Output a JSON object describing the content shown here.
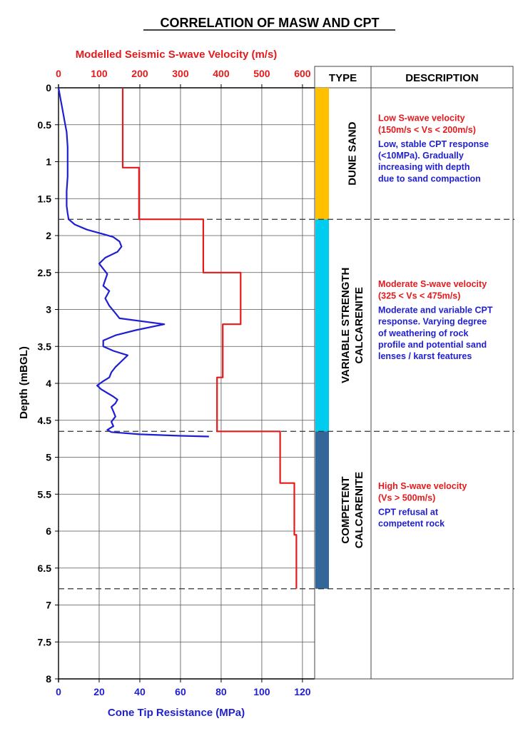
{
  "title": "CORRELATION OF MASW AND CPT",
  "chart_data": {
    "type": "line",
    "top_axis": {
      "label": "Modelled Seismic S-wave Velocity (m/s)",
      "range": [
        0,
        630
      ],
      "ticks": [
        0,
        100,
        200,
        300,
        400,
        500,
        600
      ],
      "color": "#e41a1c"
    },
    "bottom_axis": {
      "label": "Cone Tip Resistance (MPa)",
      "range": [
        0,
        126
      ],
      "ticks": [
        0,
        20,
        40,
        60,
        80,
        100,
        120
      ],
      "color": "#1f1fd2"
    },
    "y_axis": {
      "label": "Depth (mBGL)",
      "range": [
        0,
        8
      ],
      "inverted": true,
      "ticks": [
        "0",
        "0.5",
        "1",
        "1.5",
        "2",
        "2.5",
        "3",
        "3.5",
        "4",
        "4.5",
        "5",
        "5.5",
        "6",
        "6.5",
        "7",
        "7.5",
        "8"
      ],
      "tick_values": [
        0,
        0.5,
        1,
        1.5,
        2,
        2.5,
        3,
        3.5,
        4,
        4.5,
        5,
        5.5,
        6,
        6.5,
        7,
        7.5,
        8
      ]
    },
    "grid": true,
    "series": [
      {
        "axis": "top",
        "color": "#e41a1c",
        "points": [
          [
            158,
            0
          ],
          [
            158,
            1.08
          ],
          [
            198,
            1.08
          ],
          [
            198,
            1.78
          ],
          [
            356,
            1.78
          ],
          [
            356,
            2.5
          ],
          [
            448,
            2.5
          ],
          [
            448,
            3.2
          ],
          [
            404,
            3.2
          ],
          [
            404,
            3.92
          ],
          [
            390,
            3.92
          ],
          [
            390,
            4.65
          ],
          [
            545,
            4.65
          ],
          [
            545,
            5.35
          ],
          [
            580,
            5.35
          ],
          [
            580,
            6.05
          ],
          [
            585,
            6.05
          ],
          [
            585,
            6.78
          ]
        ]
      },
      {
        "axis": "bottom",
        "color": "#1f1fd2",
        "points": [
          [
            0,
            0
          ],
          [
            1,
            0.15
          ],
          [
            2,
            0.3
          ],
          [
            3,
            0.45
          ],
          [
            4,
            0.6
          ],
          [
            4.5,
            0.8
          ],
          [
            4.5,
            1.0
          ],
          [
            4.5,
            1.2
          ],
          [
            4,
            1.4
          ],
          [
            4,
            1.6
          ],
          [
            4.5,
            1.7
          ],
          [
            5,
            1.78
          ],
          [
            8,
            1.85
          ],
          [
            14,
            1.92
          ],
          [
            22,
            1.98
          ],
          [
            27,
            2.02
          ],
          [
            30,
            2.08
          ],
          [
            31,
            2.15
          ],
          [
            29,
            2.22
          ],
          [
            23,
            2.3
          ],
          [
            20,
            2.38
          ],
          [
            22,
            2.45
          ],
          [
            24,
            2.52
          ],
          [
            23,
            2.6
          ],
          [
            22,
            2.68
          ],
          [
            25,
            2.75
          ],
          [
            23,
            2.85
          ],
          [
            25,
            2.95
          ],
          [
            28,
            3.05
          ],
          [
            30,
            3.12
          ],
          [
            52,
            3.2
          ],
          [
            38,
            3.28
          ],
          [
            28,
            3.35
          ],
          [
            22,
            3.42
          ],
          [
            22,
            3.5
          ],
          [
            27,
            3.56
          ],
          [
            34,
            3.62
          ],
          [
            31,
            3.7
          ],
          [
            28,
            3.78
          ],
          [
            26,
            3.85
          ],
          [
            25,
            3.92
          ],
          [
            22,
            3.97
          ],
          [
            19,
            4.03
          ],
          [
            21,
            4.08
          ],
          [
            24,
            4.13
          ],
          [
            27,
            4.18
          ],
          [
            29,
            4.22
          ],
          [
            28,
            4.27
          ],
          [
            26,
            4.32
          ],
          [
            27,
            4.38
          ],
          [
            28,
            4.45
          ],
          [
            26,
            4.52
          ],
          [
            27,
            4.58
          ],
          [
            24,
            4.63
          ],
          [
            26,
            4.66
          ],
          [
            40,
            4.69
          ],
          [
            60,
            4.71
          ],
          [
            74,
            4.72
          ]
        ]
      }
    ],
    "boundaries": [
      1.78,
      4.65,
      6.78
    ],
    "table": {
      "headers": [
        "TYPE",
        "DESCRIPTION"
      ],
      "layers": [
        {
          "name": "DUNE SAND",
          "name_lines": [
            "DUNE SAND"
          ],
          "top": 0,
          "bottom": 1.78,
          "color": "#ffc000",
          "vs_lines": [
            "Low S-wave velocity",
            "(150m/s < Vs < 200m/s)"
          ],
          "cpt_lines": [
            "Low, stable CPT response",
            "(<10MPa). Gradually",
            "increasing with depth",
            "due to sand compaction"
          ]
        },
        {
          "name": "VARIABLE STRENGTH CALCARENITE",
          "name_lines": [
            "VARIABLE STRENGTH",
            "CALCARENITE"
          ],
          "top": 1.78,
          "bottom": 4.65,
          "color": "#00ccf0",
          "vs_lines": [
            "Moderate S-wave velocity",
            "(325 < Vs < 475m/s)"
          ],
          "cpt_lines": [
            "Moderate and variable CPT",
            "response. Varying degree",
            "of weathering of rock",
            "profile and potential sand",
            "lenses / karst features"
          ]
        },
        {
          "name": "COMPETENT CALCARENITE",
          "name_lines": [
            "COMPETENT",
            "CALCARENITE"
          ],
          "top": 4.65,
          "bottom": 6.78,
          "color": "#336699",
          "vs_lines": [
            "High S-wave velocity",
            "(Vs > 500m/s)"
          ],
          "cpt_lines": [
            "CPT refusal at",
            "competent rock"
          ]
        }
      ]
    }
  }
}
